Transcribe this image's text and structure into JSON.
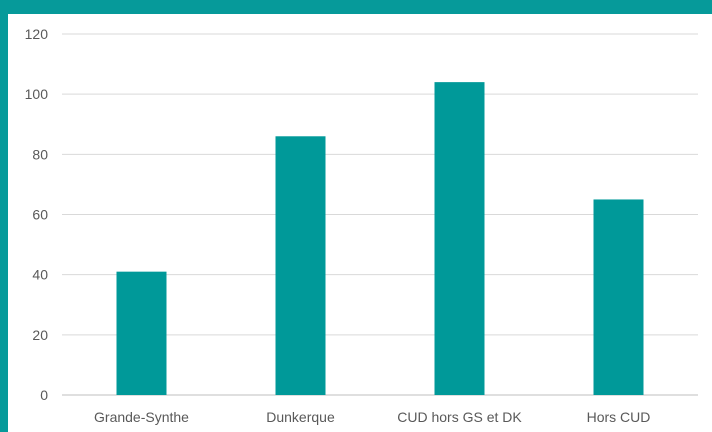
{
  "chart_data": {
    "type": "bar",
    "categories": [
      "Grande-Synthe",
      "Dunkerque",
      "CUD hors GS et DK",
      "Hors CUD"
    ],
    "values": [
      41,
      86,
      104,
      65
    ],
    "ylim": [
      0,
      120
    ],
    "yticks": [
      0,
      20,
      40,
      60,
      80,
      100,
      120
    ],
    "grid": true,
    "bar_color": "#009999",
    "frame_color": "#069a9a"
  }
}
